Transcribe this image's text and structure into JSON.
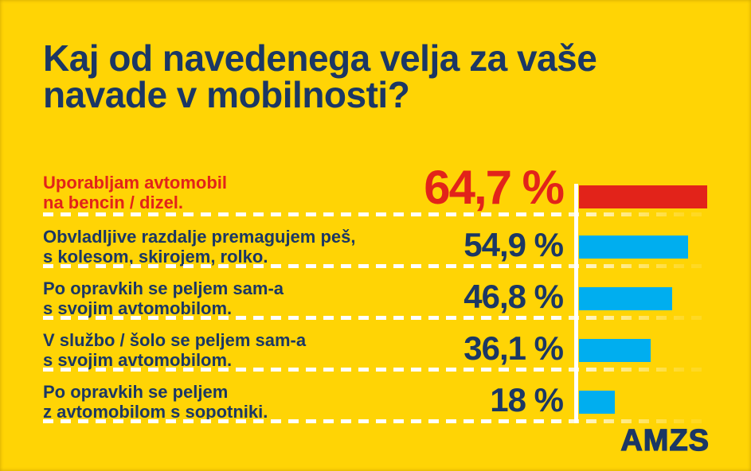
{
  "title": {
    "line1": "Kaj od navedenega velja za vaše",
    "line2": "navade v mobilnosti?"
  },
  "logo": {
    "text": "AMZS"
  },
  "colors": {
    "background": "#FFD405",
    "navy": "#1B3764",
    "red": "#E2231A",
    "cyan": "#00AEEF",
    "separator": "#FFFFFF"
  },
  "chart_data": {
    "type": "bar",
    "orientation": "horizontal",
    "unit": "%",
    "title": "Kaj od navedenega velja za vaše navade v mobilnosti?",
    "categories": [
      "Uporabljam avtomobil na bencin / dizel.",
      "Obvladljive razdalje premagujem peš, s kolesom, skirojem, rolko.",
      "Po opravkih se peljem sam-a s svojim avtomobilom.",
      "V službo / šolo se peljem sam-a s svojim avtomobilom.",
      "Po opravkih se peljem z avtomobilom s sopotniki."
    ],
    "values": [
      64.7,
      54.9,
      46.8,
      36.1,
      18
    ],
    "value_labels": [
      "64,7 %",
      "54,9 %",
      "46,8 %",
      "36,1 %",
      "18 %"
    ],
    "bar_colors": [
      "#E2231A",
      "#00AEEF",
      "#00AEEF",
      "#00AEEF",
      "#00AEEF"
    ],
    "highlighted_index": 0,
    "xlim": [
      0,
      66
    ],
    "grid": false,
    "legend": false
  },
  "rows": [
    {
      "label_lines": [
        "Uporabljam avtomobil",
        "na bencin / dizel."
      ],
      "value_label": "64,7 %",
      "value": 64.7
    },
    {
      "label_lines": [
        "Obvladljive razdalje premagujem peš,",
        "s kolesom, skirojem, rolko."
      ],
      "value_label": "54,9 %",
      "value": 54.9
    },
    {
      "label_lines": [
        "Po opravkih se peljem sam-a",
        "s svojim avtomobilom."
      ],
      "value_label": "46,8 %",
      "value": 46.8
    },
    {
      "label_lines": [
        "V službo / šolo se peljem sam-a",
        "s svojim avtomobilom."
      ],
      "value_label": "36,1 %",
      "value": 36.1
    },
    {
      "label_lines": [
        "Po opravkih se peljem",
        "z avtomobilom s sopotniki."
      ],
      "value_label": "18 %",
      "value": 18
    }
  ]
}
